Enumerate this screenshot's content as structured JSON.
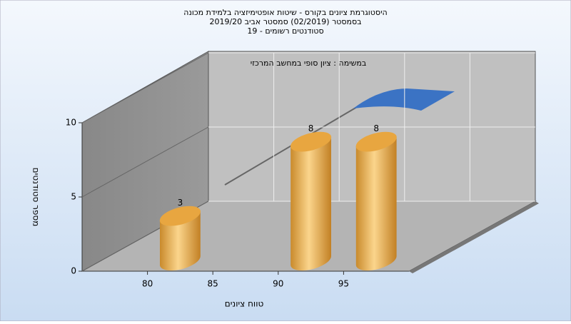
{
  "chart_data": {
    "type": "histogram",
    "title": [
      "היסטוגרמת ציונים בקורס - שיטות אופטימיזציה בלמידת מכונה",
      "בסמסטר  (02/2019)  סמסטר אביב 2019/20",
      "סטודנטים רשומים - 19"
    ],
    "subtitle": "במשימה : ציון סופי במחשב המרכזי",
    "x_label": "טווח ציונים",
    "y_label": "מספר סטודנטים",
    "bins": [
      80,
      85,
      90,
      95,
      100
    ],
    "values": [
      3,
      0,
      8,
      8
    ],
    "color": "#e8a640",
    "xlim": [
      75,
      100
    ],
    "xticks": [
      80,
      85,
      90,
      95
    ],
    "ylim": [
      0,
      10
    ],
    "yticks": [
      0,
      5,
      10
    ],
    "grid": true
  }
}
